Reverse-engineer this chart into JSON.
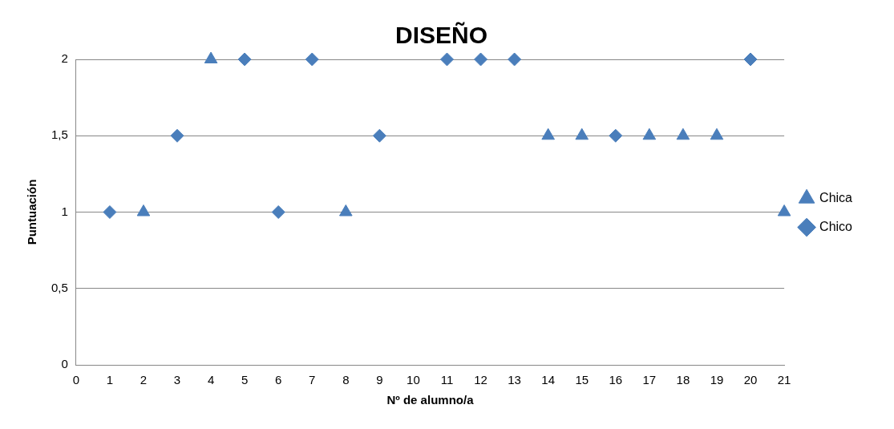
{
  "chart_data": {
    "type": "scatter",
    "title": "DISEÑO",
    "xlabel": "Nº de alumno/a",
    "ylabel": "Puntuación",
    "xlim": [
      0,
      21
    ],
    "xticks": [
      0,
      1,
      2,
      3,
      4,
      5,
      6,
      7,
      8,
      9,
      10,
      11,
      12,
      13,
      14,
      15,
      16,
      17,
      18,
      19,
      20,
      21
    ],
    "ylim": [
      0,
      2
    ],
    "yticks": [
      0,
      {
        "value": 0.5,
        "label": "0,5"
      },
      1,
      {
        "value": 1.5,
        "label": "1,5"
      },
      2
    ],
    "grid": "y",
    "legend": "right",
    "series": [
      {
        "name": "Chica",
        "color": "#4a7ebb",
        "marker": "triangle",
        "x": [
          2,
          4,
          8,
          14,
          15,
          17,
          18,
          19,
          21
        ],
        "values": [
          1,
          2,
          1,
          1.5,
          1.5,
          1.5,
          1.5,
          1.5,
          1
        ]
      },
      {
        "name": "Chico",
        "color": "#4a7ebb",
        "marker": "diamond",
        "x": [
          1,
          3,
          5,
          6,
          7,
          9,
          11,
          12,
          13,
          16,
          20
        ],
        "values": [
          1,
          1.5,
          2,
          1,
          2,
          1.5,
          2,
          2,
          2,
          1.5,
          2
        ]
      }
    ]
  }
}
